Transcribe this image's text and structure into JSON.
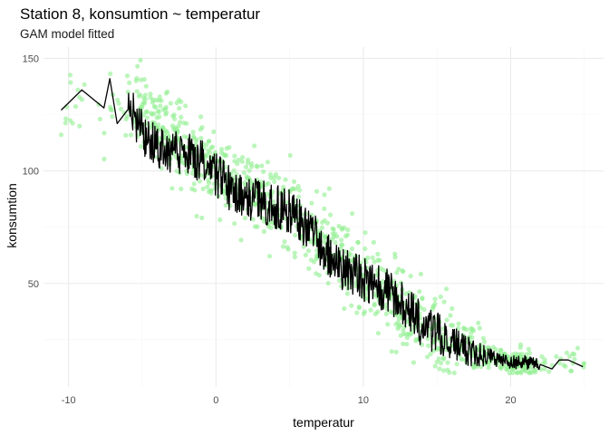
{
  "chart_data": {
    "type": "scatter",
    "title": "Station 8, konsumtion ~ temperatur",
    "subtitle": "GAM model fitted",
    "xlabel": "temperatur",
    "ylabel": "konsumtion",
    "xlim": [
      -11.7,
      26.3
    ],
    "ylim": [
      4,
      155
    ],
    "x_ticks": [
      -10,
      0,
      10,
      20
    ],
    "y_ticks": [
      50,
      100,
      150
    ],
    "grid": true,
    "point_color": "#90ee90",
    "line_color": "#000000",
    "points": {
      "count": 1100,
      "x_range": [
        -10.5,
        25
      ],
      "trend": [
        [
          -10.5,
          126
        ],
        [
          -5,
          126
        ],
        [
          0,
          100
        ],
        [
          5,
          82
        ],
        [
          10,
          52
        ],
        [
          15,
          26
        ],
        [
          20,
          15
        ],
        [
          25,
          14
        ]
      ]
    },
    "fitted_line": {
      "name": "GAM fit",
      "x": [
        -10.5,
        -9.1,
        -7.6,
        -7.2,
        -6.7,
        -6.0,
        -5.5,
        -5.0,
        -4.5,
        -4.0,
        -3.5,
        -3.0,
        -2.0,
        -1.0,
        0.0,
        1.0,
        2.0,
        3.0,
        4.0,
        5.0,
        6.0,
        7.0,
        8.0,
        9.0,
        10.0,
        11.0,
        12.0,
        13.0,
        14.0,
        15.0,
        16.0,
        17.0,
        18.0,
        19.0,
        20.0,
        21.0,
        22.0,
        22.8,
        23.3,
        23.9,
        24.9
      ],
      "y": [
        127,
        136,
        128,
        141,
        121,
        127,
        124,
        118,
        113,
        110,
        108,
        109,
        108,
        104,
        98,
        92,
        88,
        86,
        84,
        82,
        76,
        68,
        60,
        55,
        52,
        49,
        45,
        38,
        32,
        28,
        24,
        20,
        18,
        16,
        15,
        15,
        14,
        12,
        16,
        16,
        13
      ]
    }
  }
}
